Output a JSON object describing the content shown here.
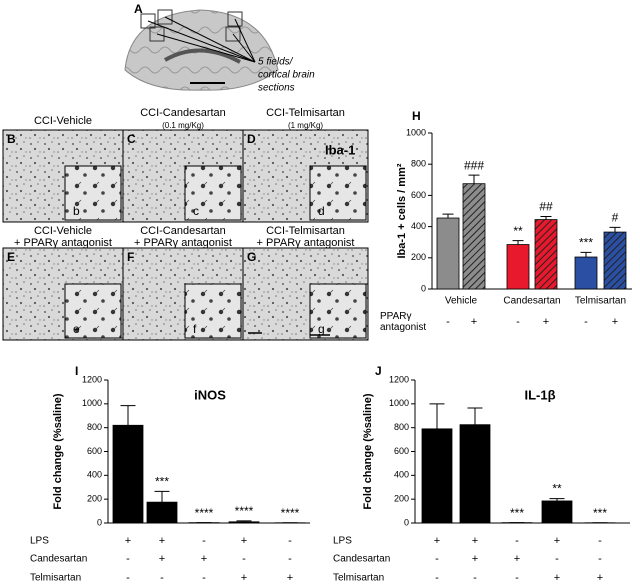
{
  "panel_a": {
    "label": "A",
    "note": [
      "5 fields/",
      "cortical brain",
      "sections"
    ]
  },
  "stain": "Iba-1",
  "micrographs": [
    {
      "label": "B",
      "inset": "b",
      "title": [
        "CCI-Vehicle"
      ]
    },
    {
      "label": "C",
      "inset": "c",
      "title": [
        "CCI-Candesartan",
        "(0.1 mg/Kg)"
      ]
    },
    {
      "label": "D",
      "inset": "d",
      "title": [
        "CCI-Telmisartan",
        "(1 mg/Kg)"
      ]
    },
    {
      "label": "E",
      "inset": "e",
      "title": [
        "CCI-Vehicle",
        "+ PPARγ antagonist"
      ]
    },
    {
      "label": "F",
      "inset": "f",
      "title": [
        "CCI-Candesartan",
        "+ PPARγ antagonist"
      ]
    },
    {
      "label": "G",
      "inset": "g",
      "title": [
        "CCI-Telmisartan",
        "+ PPARγ antagonist"
      ]
    }
  ],
  "chart_data": [
    {
      "type": "bar",
      "label": "H",
      "ylabel": "Iba-1 + cells / mm²",
      "ylim": [
        0,
        1000
      ],
      "yticks": [
        0,
        200,
        400,
        600,
        800,
        1000
      ],
      "values": [
        455,
        675,
        285,
        445,
        205,
        365
      ],
      "errors": [
        25,
        55,
        25,
        20,
        30,
        30
      ],
      "colors": [
        "#8c8c8c",
        "#8c8c8c",
        "#e8192c",
        "#e8192c",
        "#2a4fa3",
        "#2a4fa3"
      ],
      "hatched": [
        false,
        true,
        false,
        true,
        false,
        true
      ],
      "annotations": [
        null,
        "###",
        "**",
        "##",
        "***",
        "#"
      ],
      "groups": [
        "Vehicle",
        "Candesartan",
        "Telmisartan"
      ],
      "conditions": [
        {
          "name": [
            "PPARγ",
            "antagonist"
          ],
          "values": [
            "-",
            "+",
            "-",
            "+",
            "-",
            "+"
          ]
        }
      ]
    },
    {
      "type": "bar",
      "label": "I",
      "title": "iNOS",
      "ylabel": "Fold change (%saline)",
      "ylim": [
        0,
        1200
      ],
      "yticks": [
        0,
        200,
        400,
        600,
        800,
        1000,
        1200
      ],
      "values": [
        820,
        175,
        3,
        10,
        2
      ],
      "errors": [
        165,
        90,
        0,
        8,
        0
      ],
      "colors": [
        "#000000",
        "#000000",
        "#000000",
        "#000000",
        "#000000"
      ],
      "hatched": [
        false,
        false,
        false,
        false,
        false
      ],
      "annotations": [
        null,
        "***",
        "****",
        "****",
        "****"
      ],
      "conditions": [
        {
          "name": [
            "LPS"
          ],
          "values": [
            "+",
            "+",
            "-",
            "+",
            "-"
          ]
        },
        {
          "name": [
            "Candesartan"
          ],
          "values": [
            "-",
            "+",
            "+",
            "-",
            "-"
          ]
        },
        {
          "name": [
            "Telmisartan"
          ],
          "values": [
            "-",
            "-",
            "-",
            "+",
            "+"
          ]
        }
      ]
    },
    {
      "type": "bar",
      "label": "J",
      "title": "IL-1β",
      "ylabel": "Fold change (%saline)",
      "ylim": [
        0,
        1200
      ],
      "yticks": [
        0,
        200,
        400,
        600,
        800,
        1000,
        1200
      ],
      "values": [
        790,
        825,
        3,
        185,
        2
      ],
      "errors": [
        210,
        140,
        0,
        20,
        0
      ],
      "colors": [
        "#000000",
        "#000000",
        "#000000",
        "#000000",
        "#000000"
      ],
      "hatched": [
        false,
        false,
        false,
        false,
        false
      ],
      "annotations": [
        null,
        null,
        "***",
        "**",
        "***"
      ],
      "conditions": [
        {
          "name": [
            "LPS"
          ],
          "values": [
            "+",
            "+",
            "-",
            "+",
            "-"
          ]
        },
        {
          "name": [
            "Candesartan"
          ],
          "values": [
            "-",
            "+",
            "+",
            "-",
            "-"
          ]
        },
        {
          "name": [
            "Telmisartan"
          ],
          "values": [
            "-",
            "-",
            "-",
            "+",
            "+"
          ]
        }
      ]
    }
  ]
}
